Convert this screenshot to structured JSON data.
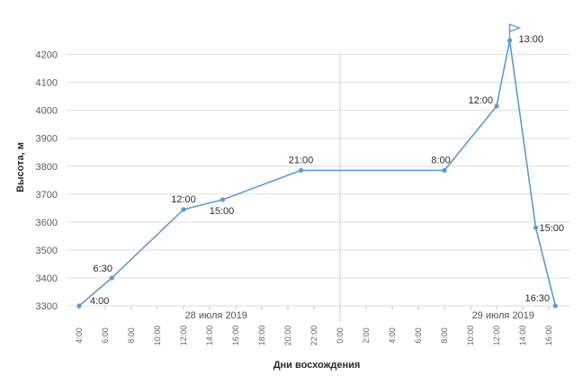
{
  "chart_data": {
    "type": "line",
    "title": "",
    "xlabel": "Дни восхождения",
    "ylabel": "Высота, м",
    "ylim": [
      3300,
      4250
    ],
    "y_ticks": [
      "3300",
      "3400",
      "3500",
      "3600",
      "3700",
      "3800",
      "3900",
      "4000",
      "4100",
      "4200"
    ],
    "x_ticks": [
      "4:00",
      "6:00",
      "8:00",
      "10:00",
      "12:00",
      "14:00",
      "16:00",
      "18:00",
      "20:00",
      "22:00",
      "0:00",
      "2:00",
      "4:00",
      "6:00",
      "8:00",
      "10:00",
      "12:00",
      "14:00",
      "16:00"
    ],
    "days": [
      "28 июля 2019",
      "29 июля 2019"
    ],
    "grid": true,
    "series_color": "#5b9bd5",
    "points": [
      {
        "label": "4:00",
        "hours": 4,
        "value": 3300
      },
      {
        "label": "6:30",
        "hours": 6.5,
        "value": 3400
      },
      {
        "label": "12:00",
        "hours": 12,
        "value": 3645
      },
      {
        "label": "15:00",
        "hours": 15,
        "value": 3680
      },
      {
        "label": "21:00",
        "hours": 21,
        "value": 3785
      },
      {
        "label": "8:00",
        "hours": 32,
        "value": 3785
      },
      {
        "label": "12:00",
        "hours": 36,
        "value": 4015
      },
      {
        "label": "13:00",
        "hours": 37,
        "value": 4250
      },
      {
        "label": "15:00",
        "hours": 39,
        "value": 3580
      },
      {
        "label": "16:30",
        "hours": 40.5,
        "value": 3300
      }
    ]
  }
}
